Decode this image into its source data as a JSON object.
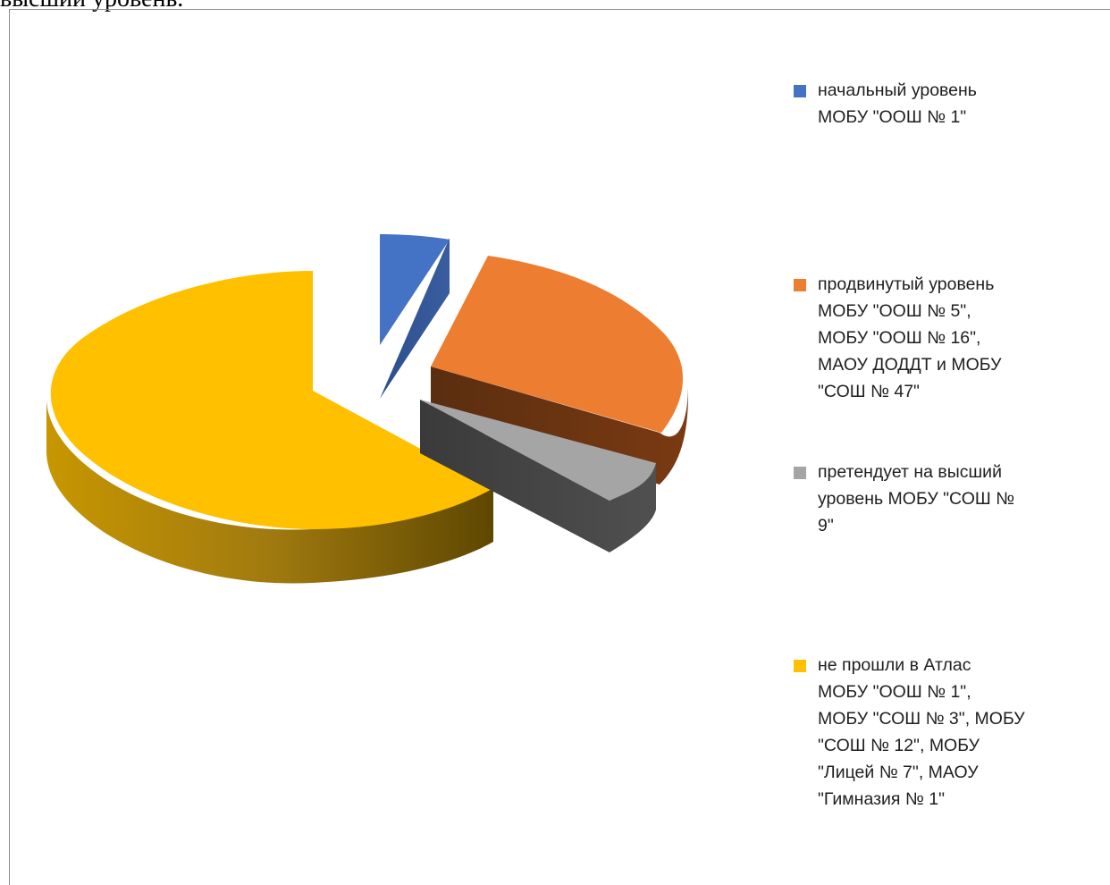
{
  "header_text": "высший уровень.",
  "chart_data": {
    "type": "pie",
    "style": "3d-exploded",
    "title": "",
    "legend_position": "right",
    "values": [
      1,
      4,
      1,
      7
    ],
    "categories": [
      "начальный уровень МОБУ \"ООШ № 1\"",
      "продвинутый уровень МОБУ \"ООШ № 5\", МОБУ \"ООШ № 16\", МАОУ ДОДДТ и МОБУ \"СОШ № 47\"",
      "претендует на высший уровень МОБУ \"СОШ № 9\"",
      "не прошли в Атлас МОБУ \"ООШ № 1\", МОБУ \"СОШ № 3\", МОБУ \"СОШ № 12\",  МОБУ \"Лицей № 7\",  МАОУ \"Гимназия № 1\""
    ],
    "colors": [
      "#4472C4",
      "#ED7D31",
      "#A5A5A5",
      "#FFC000"
    ]
  },
  "legend": {
    "items": [
      {
        "lines": [
          "начальный уровень",
          "МОБУ \"ООШ № 1\""
        ],
        "color": "#4472C4"
      },
      {
        "lines": [
          "продвинутый уровень",
          "МОБУ \"ООШ № 5\",",
          "МОБУ \"ООШ № 16\",",
          "МАОУ ДОДДТ и МОБУ",
          "\"СОШ № 47\""
        ],
        "color": "#ED7D31"
      },
      {
        "lines": [
          "претендует на высший",
          "уровень МОБУ \"СОШ №",
          "9\""
        ],
        "color": "#A5A5A5"
      },
      {
        "lines": [
          "не прошли в Атлас",
          "МОБУ \"ООШ № 1\",",
          "МОБУ \"СОШ № 3\", МОБУ",
          "\"СОШ № 12\",  МОБУ",
          "\"Лицей № 7\",  МАОУ",
          "\"Гимназия № 1\""
        ],
        "color": "#FFC000"
      }
    ]
  }
}
